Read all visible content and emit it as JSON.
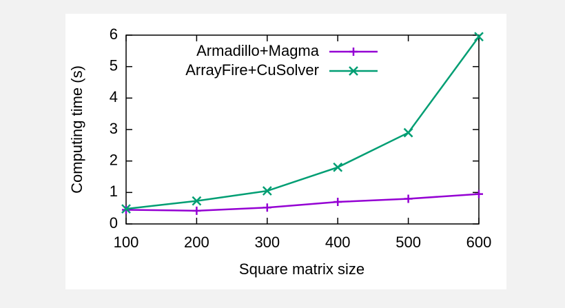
{
  "chart_data": {
    "type": "line",
    "x_label": "Square matrix size",
    "y_label": "Computing time (s)",
    "x": [
      100,
      200,
      300,
      400,
      500,
      600
    ],
    "series": [
      {
        "name": "Armadillo+Magma",
        "color": "#9400d3",
        "marker": "plus",
        "values": [
          0.45,
          0.42,
          0.52,
          0.7,
          0.8,
          0.95
        ]
      },
      {
        "name": "ArrayFire+CuSolver",
        "color": "#009e73",
        "marker": "cross",
        "values": [
          0.48,
          0.73,
          1.05,
          1.8,
          2.9,
          5.95
        ]
      }
    ],
    "xlim": [
      100,
      600
    ],
    "xticks": [
      100,
      200,
      300,
      400,
      500,
      600
    ],
    "ylim": [
      0,
      6
    ],
    "yticks": [
      0,
      1,
      2,
      3,
      4,
      5,
      6
    ],
    "grid": false,
    "legend_position": "top-left"
  }
}
